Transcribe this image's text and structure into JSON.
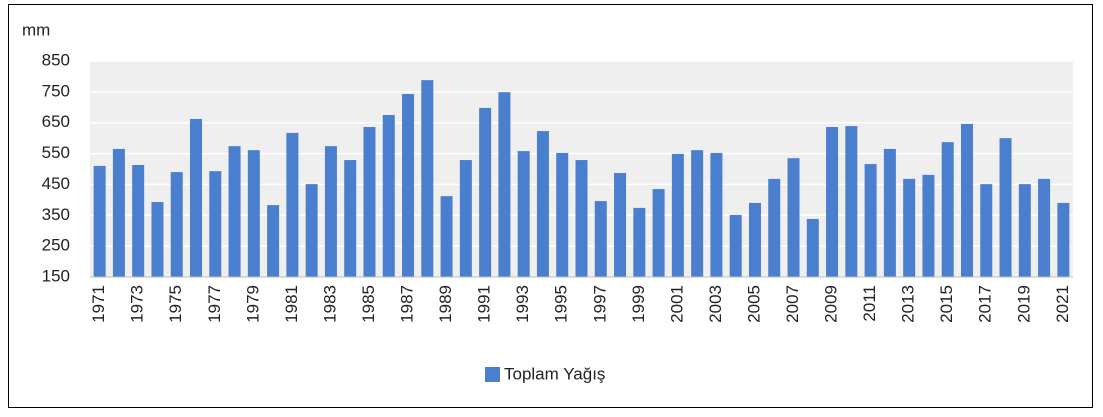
{
  "chart_data": {
    "type": "bar",
    "y_label": "mm",
    "categories": [
      "1971",
      null,
      "1973",
      null,
      "1975",
      null,
      "1977",
      null,
      "1979",
      null,
      "1981",
      null,
      "1983",
      null,
      "1985",
      null,
      "1987",
      null,
      "1989",
      null,
      "1991",
      null,
      "1993",
      null,
      "1995",
      null,
      "1997",
      null,
      "1999",
      null,
      "2001",
      null,
      "2003",
      null,
      "2005",
      null,
      "2007",
      null,
      "2009",
      null,
      "2011",
      null,
      "2013",
      null,
      "2015",
      null,
      "2017",
      null,
      "2019",
      null,
      "2021"
    ],
    "series": [
      {
        "name": "Toplam Yağış",
        "color": "#4a7fd0",
        "values": [
          510,
          565,
          513,
          393,
          490,
          662,
          493,
          574,
          561,
          383,
          617,
          451,
          574,
          529,
          636,
          675,
          743,
          788,
          412,
          529,
          698,
          749,
          558,
          623,
          552,
          529,
          396,
          487,
          374,
          435,
          549,
          561,
          552,
          351,
          390,
          468,
          535,
          338,
          636,
          639,
          516,
          565,
          468,
          481,
          587,
          646,
          451,
          600,
          451,
          468,
          390
        ]
      }
    ],
    "ylim": [
      150,
      850
    ],
    "yticks": [
      150,
      250,
      350,
      450,
      550,
      650,
      750,
      850
    ],
    "grid": true,
    "legend": "bottom"
  }
}
